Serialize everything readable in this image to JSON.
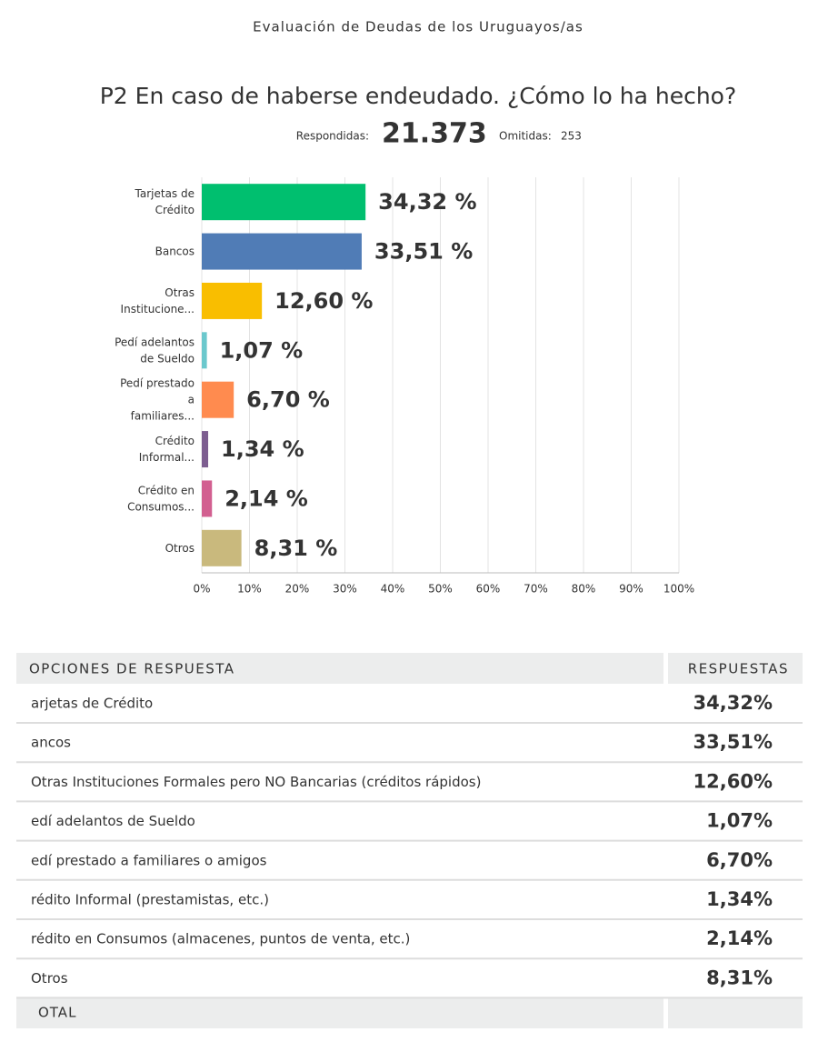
{
  "header": {
    "title": "Evaluación de Deudas de los Uruguayos/as"
  },
  "question": {
    "title": "P2 En caso de haberse endeudado. ¿Cómo lo ha hecho?",
    "answered_label": "Respondidas:",
    "answered_value": "21.373",
    "skipped_label": "Omitidas:",
    "skipped_value": "253"
  },
  "chart_data": {
    "type": "bar",
    "orientation": "horizontal",
    "categories": [
      "Tarjetas de Crédito",
      "Bancos",
      "Otras Institucione...",
      "Pedí adelantos de Sueldo",
      "Pedí prestado a familiares...",
      "Crédito Informal...",
      "Crédito en Consumos...",
      "Otros"
    ],
    "values": [
      34.32,
      33.51,
      12.6,
      1.07,
      6.7,
      1.34,
      2.14,
      8.31
    ],
    "value_labels": [
      "34,32 %",
      "33,51 %",
      "12,60 %",
      "1,07 %",
      "6,70 %",
      "1,34 %",
      "2,14 %",
      "8,31 %"
    ],
    "colors": [
      "#00bf6f",
      "#507cb6",
      "#f9be00",
      "#6bc8cd",
      "#ff8b4f",
      "#7d5e90",
      "#d25f90",
      "#c9b97d"
    ],
    "xlim": [
      0,
      100
    ],
    "xticks": [
      {
        "value": 0,
        "label": "0%"
      },
      {
        "value": 10,
        "label": "10%"
      },
      {
        "value": 20,
        "label": "20%"
      },
      {
        "value": 30,
        "label": "30%"
      },
      {
        "value": 40,
        "label": "40%"
      },
      {
        "value": 50,
        "label": "50%"
      },
      {
        "value": 60,
        "label": "60%"
      },
      {
        "value": 70,
        "label": "70%"
      },
      {
        "value": 80,
        "label": "80%"
      },
      {
        "value": 90,
        "label": "90%"
      },
      {
        "value": 100,
        "label": "100%"
      }
    ],
    "grid": true
  },
  "table": {
    "header": [
      "OPCIONES DE RESPUESTA",
      "RESPUESTAS"
    ],
    "rows": [
      [
        "arjetas de Crédito",
        "34,32%"
      ],
      [
        "ancos",
        "33,51%"
      ],
      [
        "Otras Instituciones Formales pero NO Bancarias (créditos rápidos)",
        "12,60%"
      ],
      [
        "edí adelantos de Sueldo",
        "1,07%"
      ],
      [
        "edí prestado a familiares o amigos",
        "6,70%"
      ],
      [
        "rédito Informal (prestamistas, etc.)",
        "1,34%"
      ],
      [
        "rédito en Consumos (almacenes, puntos de venta, etc.)",
        "2,14%"
      ],
      [
        "Otros",
        "8,31%"
      ]
    ],
    "footer": "OTAL"
  }
}
